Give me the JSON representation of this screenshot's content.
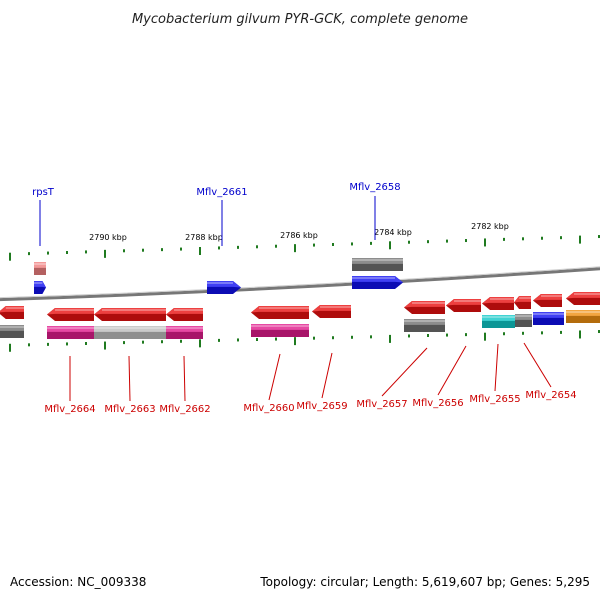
{
  "title": "Mycobacterium gilvum PYR-GCK, complete genome",
  "footer": {
    "accession": "Accession: NC_009338",
    "topology": "Topology: circular; Length: 5,619,607 bp; Genes: 5,295"
  },
  "colors": {
    "axis": "#888888",
    "tick": "#1f7a1f",
    "label_top": "#0000cc",
    "label_bottom": "#cc0000",
    "red": "#e81010",
    "blue": "#1010f0",
    "gray": "#707070",
    "magenta": "#e01c8c",
    "lightgray": "#bdbdbd",
    "cyan": "#10c8c8",
    "orange": "#f09010",
    "pink": "#f08080"
  },
  "kbp_labels": [
    "2790 kbp",
    "2788 kbp",
    "2786 kbp",
    "2784 kbp",
    "2782 kbp"
  ],
  "gene_labels_top": [
    "rpsT",
    "Mflv_2661",
    "Mflv_2658"
  ],
  "gene_labels_bottom": [
    "Mflv_2664",
    "Mflv_2663",
    "Mflv_2662",
    "Mflv_2660",
    "Mflv_2659",
    "Mflv_2657",
    "Mflv_2656",
    "Mflv_2655",
    "Mflv_2654"
  ]
}
